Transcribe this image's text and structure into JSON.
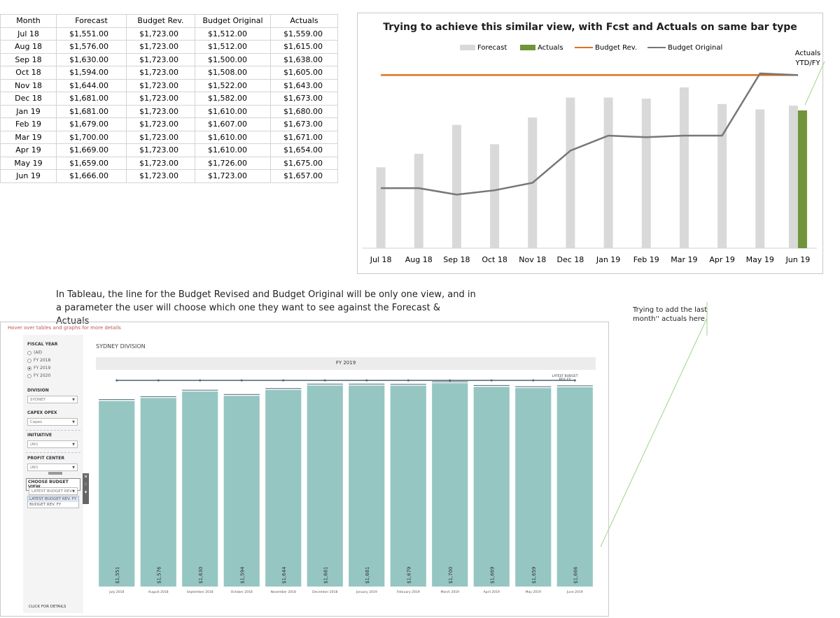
{
  "excel": {
    "headers": [
      "Month",
      "Forecast",
      "Budget Rev.",
      "Budget Original",
      "Actuals"
    ],
    "rows": [
      [
        "Jul 18",
        "$1,551.00",
        "$1,723.00",
        "$1,512.00",
        "$1,559.00"
      ],
      [
        "Aug 18",
        "$1,576.00",
        "$1,723.00",
        "$1,512.00",
        "$1,615.00"
      ],
      [
        "Sep 18",
        "$1,630.00",
        "$1,723.00",
        "$1,500.00",
        "$1,638.00"
      ],
      [
        "Oct 18",
        "$1,594.00",
        "$1,723.00",
        "$1,508.00",
        "$1,605.00"
      ],
      [
        "Nov 18",
        "$1,644.00",
        "$1,723.00",
        "$1,522.00",
        "$1,643.00"
      ],
      [
        "Dec 18",
        "$1,681.00",
        "$1,723.00",
        "$1,582.00",
        "$1,673.00"
      ],
      [
        "Jan 19",
        "$1,681.00",
        "$1,723.00",
        "$1,610.00",
        "$1,680.00"
      ],
      [
        "Feb 19",
        "$1,679.00",
        "$1,723.00",
        "$1,607.00",
        "$1,673.00"
      ],
      [
        "Mar 19",
        "$1,700.00",
        "$1,723.00",
        "$1,610.00",
        "$1,671.00"
      ],
      [
        "Apr 19",
        "$1,669.00",
        "$1,723.00",
        "$1,610.00",
        "$1,654.00"
      ],
      [
        "May 19",
        "$1,659.00",
        "$1,723.00",
        "$1,726.00",
        "$1,675.00"
      ],
      [
        "Jun 19",
        "$1,666.00",
        "$1,723.00",
        "$1,723.00",
        "$1,657.00"
      ]
    ]
  },
  "notes": {
    "tableau_note": "In Tableau, the line for the Budget Revised and Budget Original will be only one view, and in a parameter the user will choose which one they want to see against the Forecast & Actuals",
    "last_month_note": "Trying to add the last month'' actuals here",
    "actuals_ytd": "Actuals YTD/FY"
  },
  "colors": {
    "forecast": "#d9d9d9",
    "actuals": "#70943a",
    "budget_rev": "#e07020",
    "budget_original": "#777777",
    "tableau_bar": "#95c6c2",
    "tableau_line": "#4b6470"
  },
  "chart_data": [
    {
      "type": "bar",
      "title": "Trying to achieve this similar view, with Fcst and Actuals on same bar type",
      "categories": [
        "Jul 18",
        "Aug 18",
        "Sep 18",
        "Oct 18",
        "Nov 18",
        "Dec 18",
        "Jan 19",
        "Feb 19",
        "Mar 19",
        "Apr 19",
        "May 19",
        "Jun 19"
      ],
      "series": [
        {
          "name": "Forecast",
          "kind": "bar",
          "values": [
            1551,
            1576,
            1630,
            1594,
            1644,
            1681,
            1681,
            1679,
            1700,
            1669,
            1659,
            1666
          ]
        },
        {
          "name": "Actuals",
          "kind": "bar",
          "values": [
            null,
            null,
            null,
            null,
            null,
            null,
            null,
            null,
            null,
            null,
            null,
            1657
          ]
        },
        {
          "name": "Budget Rev.",
          "kind": "line",
          "values": [
            1723,
            1723,
            1723,
            1723,
            1723,
            1723,
            1723,
            1723,
            1723,
            1723,
            1723,
            1723
          ]
        },
        {
          "name": "Budget Original",
          "kind": "line",
          "values": [
            1512,
            1512,
            1500,
            1508,
            1522,
            1582,
            1610,
            1607,
            1610,
            1610,
            1726,
            1723
          ]
        }
      ],
      "ylim": [
        1400,
        1760
      ],
      "legend": "top",
      "grid": false
    },
    {
      "type": "bar",
      "title": "FY 2019",
      "categories": [
        "July 2018",
        "August 2018",
        "September 2018",
        "October 2018",
        "November 2018",
        "December 2018",
        "January 2019",
        "February 2019",
        "March 2019",
        "April 2019",
        "May 2019",
        "June 2019"
      ],
      "values": [
        1551,
        1576,
        1630,
        1594,
        1644,
        1681,
        1681,
        1679,
        1700,
        1669,
        1659,
        1666
      ],
      "value_labels": [
        "$1,551",
        "$1,576",
        "$1,630",
        "$1,594",
        "$1,644",
        "$1,681",
        "$1,681",
        "$1,679",
        "$1,700",
        "$1,669",
        "$1,659",
        "$1,666"
      ],
      "reference_line": {
        "label": "LATEST BUDGET REV. FY",
        "value": 1723
      },
      "ylim": [
        0,
        1800
      ],
      "grid": false
    }
  ],
  "tableau": {
    "hover_hint": "Hover over tables and graphs for more details",
    "division_title": "SYDNEY DIVISION",
    "filters": {
      "fiscal_year_label": "FISCAL YEAR",
      "fiscal_year_options": [
        "(All)",
        "FY 2018",
        "FY 2019",
        "FY 2020"
      ],
      "division_label": "DIVISION",
      "division_value": "SYDNEY",
      "capex_label": "CAPEX OPEX",
      "capex_value": "Capex",
      "initiative_label": "INITIATIVE",
      "initiative_value": "(All)",
      "profit_center_label": "PROFIT CENTER",
      "profit_center_value": "(All)",
      "budget_view_label": "CHOOSE BUDGET VIEW",
      "budget_view_value": "LATEST BUDGET REV...",
      "budget_view_options": [
        "LATEST BUDGET REV. FY",
        "BUDGET REV. FY"
      ]
    },
    "click_details": "CLICK FOR DETAILS"
  }
}
